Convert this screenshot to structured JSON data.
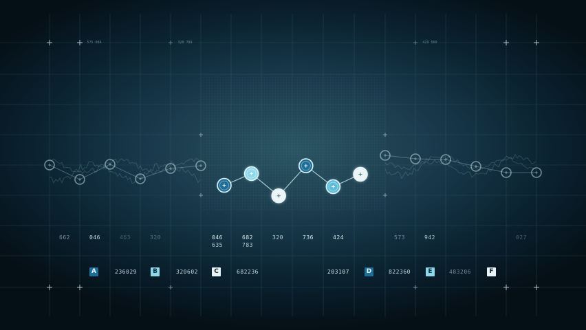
{
  "chart_data": {
    "type": "line",
    "title": "",
    "xlabel": "",
    "ylabel": "",
    "grid": true,
    "legend": "none",
    "x": [
      0,
      1,
      2,
      3,
      4,
      5
    ],
    "highlight_series": {
      "values": [
        -0.4,
        0.5,
        -1.2,
        1.1,
        -0.5,
        0.45
      ],
      "fills": [
        "#1e6d97",
        "#8fd8ea",
        "#eaf4f6",
        "#1e6d97",
        "#5fbcd9",
        "#eaf4f6"
      ]
    },
    "column_values": [
      {
        "primary": "662"
      },
      {
        "primary": "046"
      },
      {
        "primary": "463"
      },
      {
        "primary": "320"
      },
      {
        "primary": "046",
        "secondary": "635"
      },
      {
        "primary": "682",
        "secondary": "783"
      },
      {
        "primary": "320"
      },
      {
        "primary": "736"
      },
      {
        "primary": "424"
      },
      {
        "primary": "573"
      },
      {
        "primary": "942"
      },
      {
        "primary": "027"
      }
    ],
    "header_captions": [
      "575 084",
      "320 789",
      "429 569"
    ],
    "legend_codes": [
      {
        "letter": "A",
        "badge_color": "#1e6d97",
        "code": "236029"
      },
      {
        "letter": "B",
        "badge_color": "#8fd8ea",
        "code": "320602"
      },
      {
        "letter": "C",
        "badge_color": "#eaf4f6",
        "code": "682236"
      },
      {
        "letter": "",
        "badge_color": "",
        "code": "203107"
      },
      {
        "letter": "D",
        "badge_color": "#1e6d97",
        "code": "822360"
      },
      {
        "letter": "E",
        "badge_color": "#8fd8ea",
        "code": "483206"
      },
      {
        "letter": "F",
        "badge_color": "#eaf4f6",
        "code": "",
        "dark_text": true
      }
    ]
  },
  "colors": {
    "accent_blue": "#1e6d97",
    "accent_light": "#8fd8ea",
    "accent_white": "#eaf4f6",
    "label_text": "#a9c6cf",
    "grid_line": "#3e6877"
  }
}
